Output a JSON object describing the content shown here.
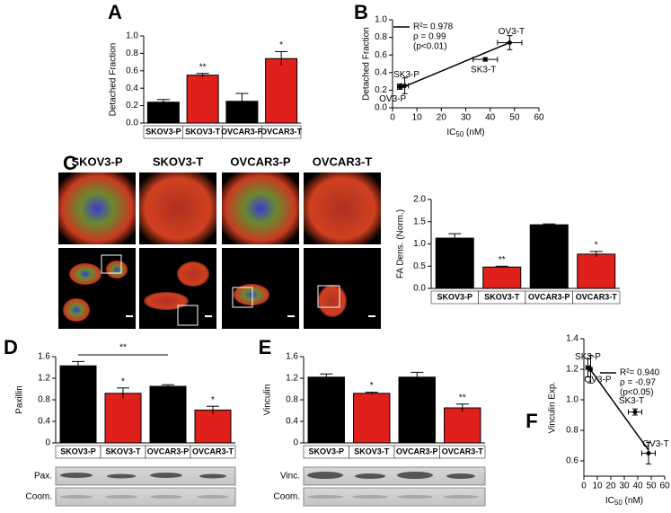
{
  "chart_data": [
    {
      "type": "bar",
      "panel": "A",
      "ylabel": "Detached Fraction",
      "categories": [
        "SKOV3-P",
        "SKOV3-T",
        "OVCAR3-P",
        "OVCAR3-T"
      ],
      "values": [
        0.24,
        0.55,
        0.25,
        0.74
      ],
      "errors": [
        0.03,
        0.02,
        0.09,
        0.08
      ],
      "colors": [
        "#000000",
        "#e0201b",
        "#000000",
        "#e0201b"
      ],
      "significance": [
        null,
        "**",
        null,
        "*"
      ],
      "ylim": [
        0,
        1
      ],
      "yticks": [
        {
          "value": 0,
          "label": "0.0"
        },
        0.2,
        0.4,
        0.6,
        0.8,
        {
          "value": 1,
          "label": "1.0"
        }
      ]
    },
    {
      "type": "scatter",
      "panel": "B",
      "ylabel": "Detached Fraction",
      "xlabel": {
        "main": "IC",
        "sub": "50",
        "unit": " (nM)"
      },
      "stats": [
        "R²= 0.978",
        "ρ = 0.99",
        "(p<0.01)"
      ],
      "labels": [
        "OV3-P",
        "SK3-P",
        "SK3-T",
        "OV3-T"
      ],
      "x": [
        3,
        5,
        38,
        48
      ],
      "values": [
        0.24,
        0.25,
        0.55,
        0.74
      ],
      "xerr": [
        1,
        1.5,
        5,
        5
      ],
      "yerr": [
        0.03,
        0.09,
        0.02,
        0.08
      ],
      "fit": {
        "x": [
          3,
          48
        ],
        "y": [
          0.22,
          0.74
        ]
      },
      "color": "#000000",
      "xlim": [
        0,
        60
      ],
      "xticks": [
        0,
        10,
        20,
        30,
        40,
        50,
        60
      ],
      "ylim": [
        0,
        1
      ],
      "yticks": [
        {
          "value": 0,
          "label": "0.0"
        },
        0.2,
        0.4,
        0.6,
        0.8,
        {
          "value": 1,
          "label": "1.0"
        }
      ]
    },
    {
      "type": "bar",
      "panel": "C",
      "ylabel": "FA Dens. (Norm.)",
      "categories": [
        "SKOV3-P",
        "SKOV3-T",
        "OVCAR3-P",
        "OVCAR3-T"
      ],
      "values": [
        1.13,
        0.48,
        1.43,
        0.77
      ],
      "errors": [
        0.1,
        0.02,
        0.02,
        0.06
      ],
      "colors": [
        "#000000",
        "#e0201b",
        "#000000",
        "#e0201b"
      ],
      "significance": [
        null,
        "**",
        null,
        "*"
      ],
      "ylim": [
        0,
        2
      ],
      "yticks": [
        {
          "value": 0,
          "label": "0.0"
        },
        0.5,
        {
          "value": 1,
          "label": "1.0"
        },
        1.5,
        {
          "value": 2,
          "label": "2.0"
        }
      ]
    },
    {
      "type": "bar",
      "panel": "D",
      "ylabel": "Paxillin",
      "categories": [
        "SKOV3-P",
        "SKOV3-T",
        "OVCAR3-P",
        "OVCAR3-T"
      ],
      "values": [
        1.43,
        0.92,
        1.05,
        0.61
      ],
      "errors": [
        0.08,
        0.1,
        0.03,
        0.07
      ],
      "colors": [
        "#000000",
        "#e0201b",
        "#000000",
        "#e0201b"
      ],
      "significance": [
        null,
        "*",
        null,
        "*"
      ],
      "bracket_label": "**",
      "blot_labels": [
        "Pax.",
        "Coom."
      ],
      "ylim": [
        0,
        1.6
      ],
      "yticks": [
        0,
        0.4,
        0.8,
        1.2,
        1.6
      ]
    },
    {
      "type": "bar",
      "panel": "E",
      "ylabel": "Vinculin",
      "categories": [
        "SKOV3-P",
        "SKOV3-T",
        "OVCAR3-P",
        "OVCAR3-T"
      ],
      "values": [
        1.22,
        0.92,
        1.22,
        0.65
      ],
      "errors": [
        0.06,
        0.02,
        0.09,
        0.07
      ],
      "colors": [
        "#000000",
        "#e0201b",
        "#000000",
        "#e0201b"
      ],
      "significance": [
        null,
        "*",
        null,
        "**"
      ],
      "blot_labels": [
        "Vinc.",
        "Coom."
      ],
      "ylim": [
        0,
        1.6
      ],
      "yticks": [
        0,
        0.4,
        0.8,
        1.2,
        1.6
      ]
    },
    {
      "type": "scatter",
      "panel": "F",
      "ylabel": "Vinculin Exp.",
      "xlabel": {
        "main": "IC",
        "sub": "50",
        "unit": " (nM)"
      },
      "stats": [
        "R²= 0.940",
        "ρ = -0.97",
        "(p<0.05)"
      ],
      "labels": [
        "SK3-P",
        "OV3-P",
        "SK3-T",
        "OV3-T"
      ],
      "x": [
        3,
        5,
        38,
        48
      ],
      "values": [
        1.21,
        1.2,
        0.92,
        0.65
      ],
      "xerr": [
        1.5,
        1,
        5,
        5
      ],
      "yerr": [
        0.06,
        0.09,
        0.02,
        0.07
      ],
      "fit": {
        "x": [
          3,
          48
        ],
        "y": [
          1.22,
          0.67
        ]
      },
      "color": "#000000",
      "xlim": [
        0,
        60
      ],
      "xticks": [
        0,
        10,
        20,
        30,
        40,
        50,
        60
      ],
      "ylim": [
        0.5,
        1.4
      ],
      "yticks": [
        0.6,
        0.8,
        {
          "value": 1,
          "label": "1.0"
        },
        1.2,
        1.4
      ]
    }
  ],
  "images": {
    "columns": [
      "SKOV3-P",
      "SKOV3-T",
      "OVCAR3-P",
      "OVCAR3-T"
    ]
  }
}
